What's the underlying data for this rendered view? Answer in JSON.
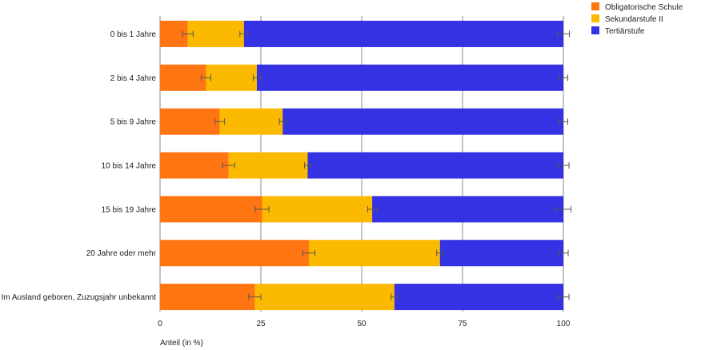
{
  "chart_data": {
    "type": "bar",
    "orientation": "horizontal",
    "stacked": true,
    "title": "",
    "xlabel": "Anteil (in %)",
    "ylabel": "",
    "xlim": [
      0,
      100
    ],
    "xticks": [
      0,
      25,
      50,
      75,
      100
    ],
    "grid": true,
    "legend_position": "top-right",
    "categories": [
      "0 bis 1 Jahre",
      "2 bis 4 Jahre",
      "5 bis 9 Jahre",
      "10 bis 14 Jahre",
      "15 bis 19 Jahre",
      "20 Jahre oder mehr",
      "Im Ausland geboren, Zuzugsjahr unbekannt"
    ],
    "series": [
      {
        "name": "Obligatorische Schule",
        "color": "#ff7511",
        "values": [
          6.9,
          11.4,
          14.8,
          17.0,
          25.3,
          36.9,
          23.5
        ],
        "errors": [
          1.3,
          1.2,
          1.2,
          1.5,
          1.7,
          1.5,
          1.5
        ]
      },
      {
        "name": "Sekundarstufe II",
        "color": "#fbba00",
        "values": [
          13.9,
          12.6,
          15.6,
          19.6,
          27.3,
          32.5,
          34.6
        ],
        "errors": [
          1.0,
          0.9,
          0.8,
          0.8,
          1.1,
          0.8,
          0.8
        ]
      },
      {
        "name": "Tertiärstufe",
        "color": "#3432e2",
        "values": [
          79.2,
          76.0,
          69.6,
          63.4,
          47.4,
          30.6,
          41.9
        ],
        "errors": [
          1.5,
          1.1,
          1.1,
          1.4,
          1.9,
          1.2,
          1.4
        ]
      }
    ]
  }
}
